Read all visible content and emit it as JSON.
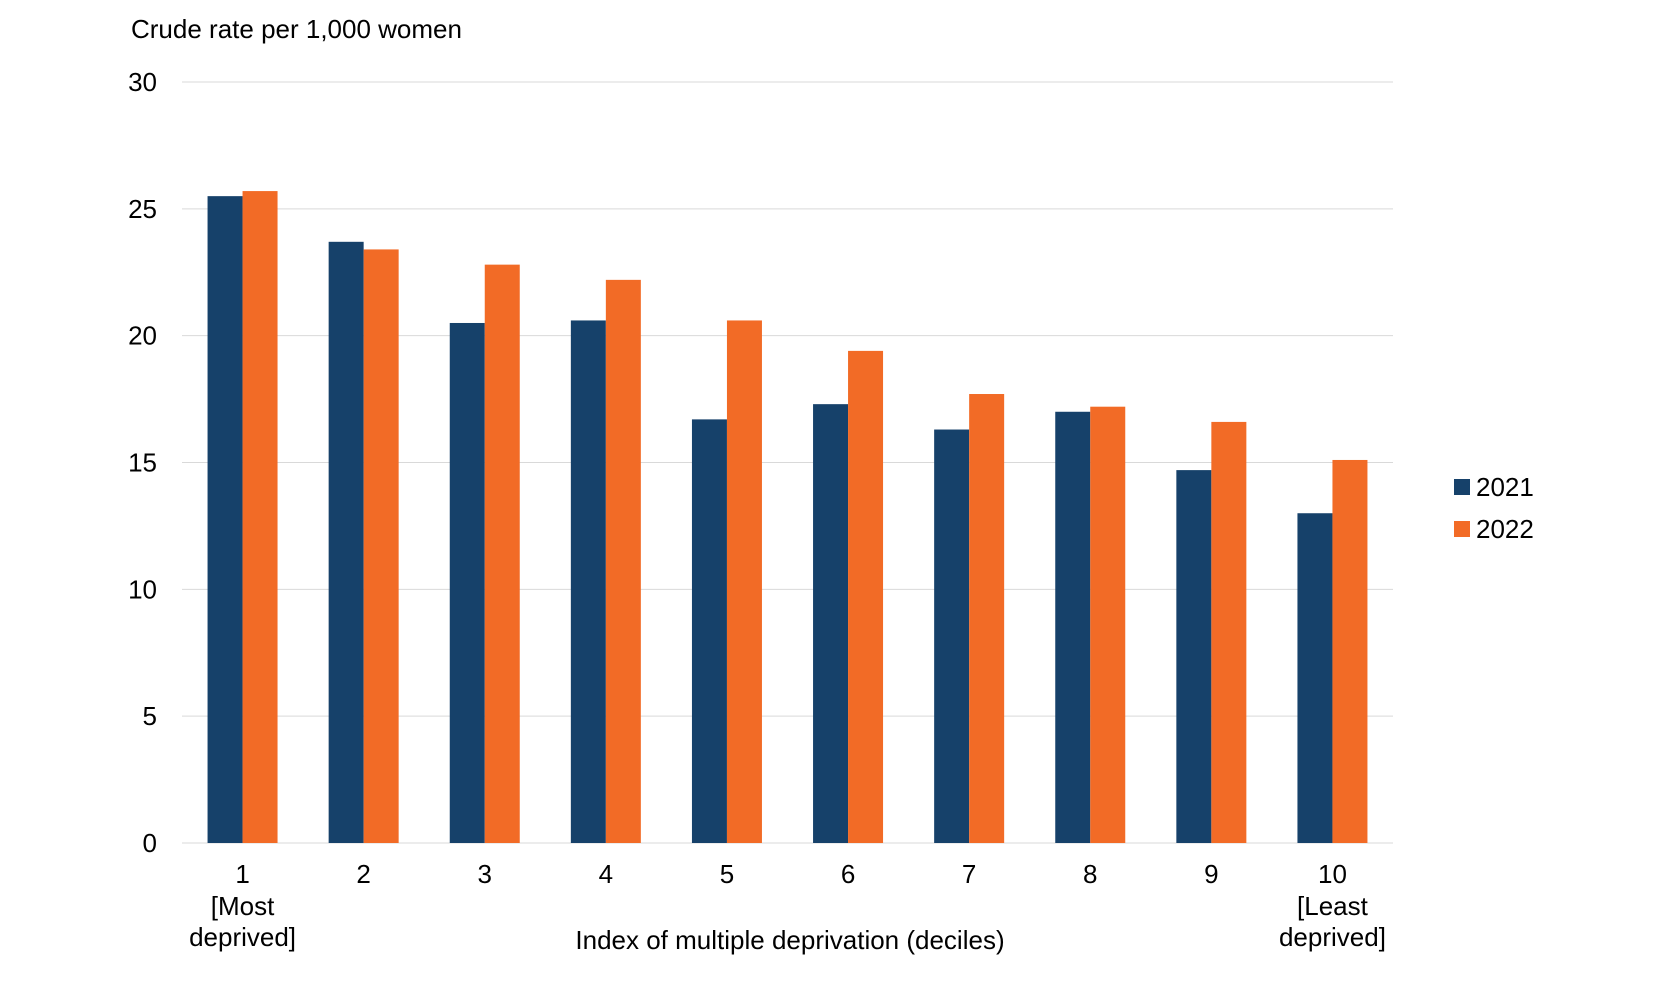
{
  "colors": {
    "series_2021": "#16416A",
    "series_2022": "#F26B26",
    "gridline": "#D9D9D9",
    "text": "#000000"
  },
  "chart_data": {
    "type": "bar",
    "ylabel": "Crude rate per 1,000 women",
    "xlabel": "Index of multiple deprivation (deciles)",
    "categories": [
      "1",
      "2",
      "3",
      "4",
      "5",
      "6",
      "7",
      "8",
      "9",
      "10"
    ],
    "category_sublabels": {
      "1": [
        "[Most",
        "deprived]"
      ],
      "10": [
        "[Least",
        "deprived]"
      ]
    },
    "y_ticks": [
      0,
      5,
      10,
      15,
      20,
      25,
      30
    ],
    "ylim": [
      0,
      30
    ],
    "grid": true,
    "legend_position": "right",
    "series": [
      {
        "name": "2021",
        "values": [
          25.5,
          23.7,
          20.5,
          20.6,
          16.7,
          17.3,
          16.3,
          17.0,
          14.7,
          13.0
        ]
      },
      {
        "name": "2022",
        "values": [
          25.7,
          23.4,
          22.8,
          22.2,
          20.6,
          19.4,
          17.7,
          17.2,
          16.6,
          15.1
        ]
      }
    ]
  }
}
